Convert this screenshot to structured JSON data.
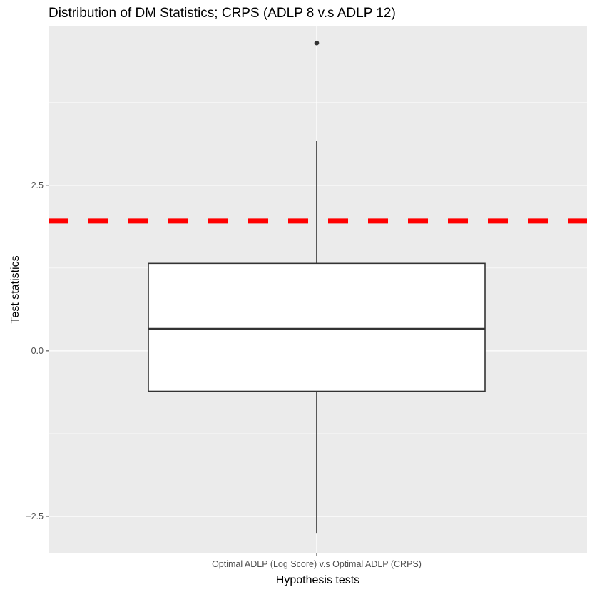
{
  "chart_data": {
    "type": "boxplot",
    "title": "Distribution of DM Statistics; CRPS (ADLP 8 v.s ADLP 12)",
    "xlabel": "Hypothesis tests",
    "ylabel": "Test statistics",
    "categories": [
      "Optimal ADLP (Log Score) v.s Optimal ADLP (CRPS)"
    ],
    "ylim": [
      -3.05,
      4.9
    ],
    "yticks": [
      -2.5,
      0.0,
      2.5
    ],
    "ytick_labels": [
      "−2.5",
      "0.0",
      "2.5"
    ],
    "grid": true,
    "panel_background": "#ebebeb",
    "grid_color": "#ffffff",
    "box": {
      "whisker_low": -2.75,
      "q1": -0.61,
      "median": 0.33,
      "q3": 1.32,
      "whisker_high": 3.17,
      "outliers": [
        4.65
      ],
      "fill": "#ffffff",
      "line_color": "#333333"
    },
    "reference_line": {
      "y": 1.96,
      "color": "#ff0000",
      "style": "dashed"
    }
  }
}
